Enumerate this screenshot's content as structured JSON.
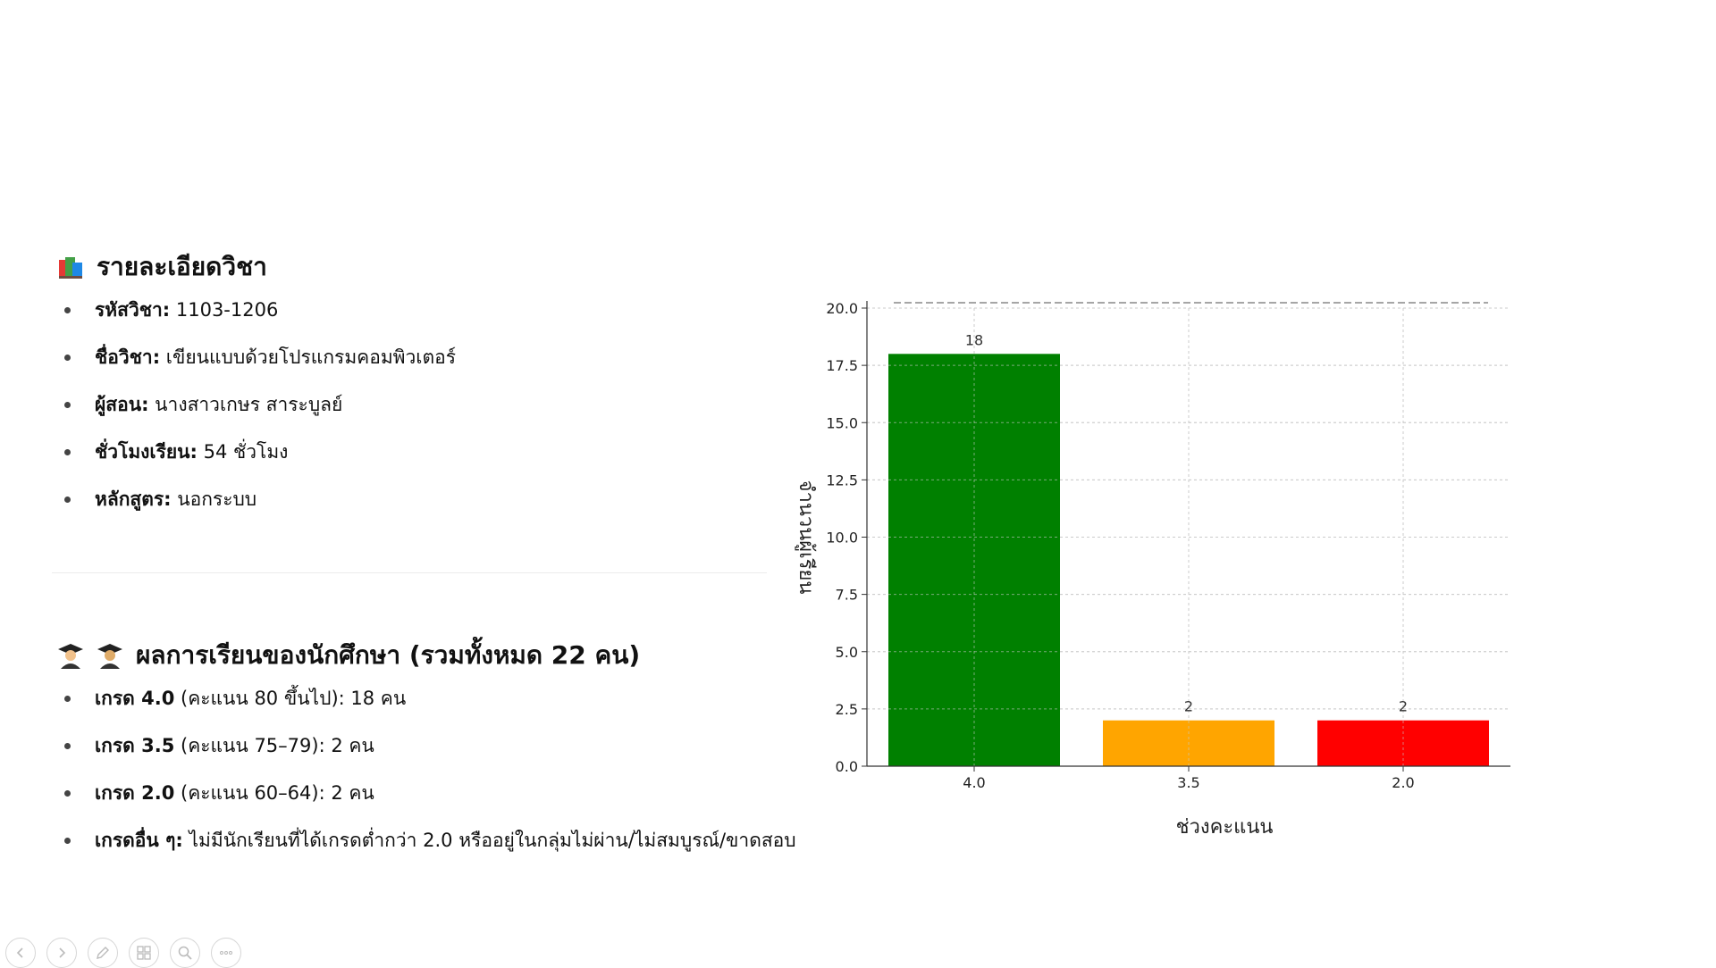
{
  "course": {
    "heading": "รายละเอียดวิชา",
    "items": [
      {
        "label": "รหัสวิชา:",
        "value": " 1103-1206"
      },
      {
        "label": "ชื่อวิชา:",
        "value": " เขียนแบบด้วยโปรแกรมคอมพิวเตอร์"
      },
      {
        "label": "ผู้สอน:",
        "value": " นางสาวเกษร สาระบูลย์"
      },
      {
        "label": "ชั่วโมงเรียน:",
        "value": " 54 ชั่วโมง"
      },
      {
        "label": "หลักสูตร:",
        "value": " นอกระบบ"
      }
    ]
  },
  "results": {
    "heading": "ผลการเรียนของนักศึกษา (รวมทั้งหมด 22 คน)",
    "items": [
      {
        "label": "เกรด 4.0",
        "value": " (คะแนน 80 ขึ้นไป): 18 คน"
      },
      {
        "label": "เกรด 3.5",
        "value": " (คะแนน 75–79): 2 คน"
      },
      {
        "label": "เกรด 2.0",
        "value": " (คะแนน 60–64): 2 คน"
      },
      {
        "label": "เกรดอื่น ๆ:",
        "value": " ไม่มีนักเรียนที่ได้เกรดต่ำกว่า 2.0 หรืออยู่ในกลุ่มไม่ผ่าน/ไม่สมบูรณ์/ขาดสอบ"
      }
    ]
  },
  "chart_data": {
    "type": "bar",
    "title": "",
    "xlabel": "ช่วงคะแนน",
    "ylabel": "จำนวนผู้เรียน",
    "categories": [
      "4.0",
      "3.5",
      "2.0"
    ],
    "values": [
      18,
      2,
      2
    ],
    "data_labels": [
      "18",
      "2",
      "2"
    ],
    "colors": [
      "#008000",
      "#ffa500",
      "#ff0000"
    ],
    "ylim": [
      0,
      20
    ],
    "yticks": [
      "0.0",
      "2.5",
      "5.0",
      "7.5",
      "10.0",
      "12.5",
      "15.0",
      "17.5",
      "20.0"
    ],
    "grid": true,
    "reference_line": 20
  },
  "toolbar": {
    "icons": [
      "previous-icon",
      "next-icon",
      "pen-icon",
      "slides-icon",
      "zoom-icon",
      "more-icon"
    ]
  }
}
